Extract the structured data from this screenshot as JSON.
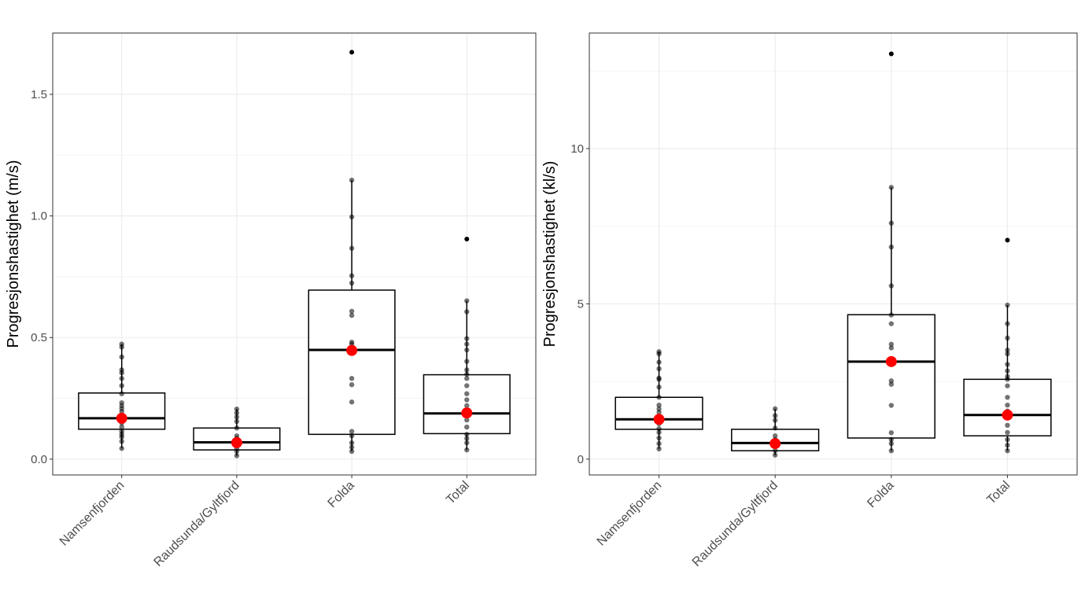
{
  "chart_data": [
    {
      "type": "boxplot",
      "ylabel": "Progresjonshastighet (m/s)",
      "xlabel": "",
      "categories": [
        "Namsenfjorden",
        "Raudsunda/Gyltfjord",
        "Folda",
        "Total"
      ],
      "yticks": [
        0.0,
        0.5,
        1.0,
        1.5
      ],
      "ytick_labels": [
        "0.0",
        "0.5",
        "1.0",
        "1.5"
      ],
      "ylim": [
        -0.065,
        1.752
      ],
      "grid": true,
      "boxes": [
        {
          "q1": 0.123,
          "median": 0.168,
          "q3": 0.272,
          "whisker_low": 0.044,
          "whisker_high": 0.473,
          "mean": 0.168,
          "outliers": []
        },
        {
          "q1": 0.038,
          "median": 0.069,
          "q3": 0.128,
          "whisker_low": 0.014,
          "whisker_high": 0.206,
          "mean": 0.068,
          "outliers": []
        },
        {
          "q1": 0.102,
          "median": 0.449,
          "q3": 0.695,
          "whisker_low": 0.032,
          "whisker_high": 1.147,
          "mean": 0.447,
          "outliers": [
            1.673
          ]
        },
        {
          "q1": 0.105,
          "median": 0.188,
          "q3": 0.347,
          "whisker_low": 0.038,
          "whisker_high": 0.651,
          "mean": 0.19,
          "outliers": [
            0.905
          ]
        }
      ],
      "points": [
        [
          0.473,
          0.461,
          0.42,
          0.367,
          0.355,
          0.332,
          0.302,
          0.269,
          0.232,
          0.22,
          0.208,
          0.196,
          0.179,
          0.149,
          0.132,
          0.114,
          0.102,
          0.091,
          0.073,
          0.044
        ],
        [
          0.206,
          0.19,
          0.173,
          0.155,
          0.128,
          0.096,
          0.085,
          0.061,
          0.044,
          0.032,
          0.014
        ],
        [
          1.147,
          0.996,
          0.867,
          0.754,
          0.724,
          0.608,
          0.591,
          0.481,
          0.473,
          0.332,
          0.306,
          0.235,
          0.114,
          0.096,
          0.067,
          0.049,
          0.032
        ],
        [
          0.651,
          0.606,
          0.496,
          0.473,
          0.449,
          0.402,
          0.367,
          0.349,
          0.332,
          0.302,
          0.269,
          0.244,
          0.22,
          0.191,
          0.161,
          0.132,
          0.102,
          0.085,
          0.067,
          0.038
        ]
      ],
      "mean_color": "#ff0000"
    },
    {
      "type": "boxplot",
      "ylabel": "Progresjonshastighet (kl/s)",
      "xlabel": "",
      "categories": [
        "Namsenfjorden",
        "Raudsunda/Gyltfjord",
        "Folda",
        "Total"
      ],
      "yticks": [
        0,
        5,
        10
      ],
      "ytick_labels": [
        "0",
        "5",
        "10"
      ],
      "ylim": [
        -0.51,
        13.72
      ],
      "grid": true,
      "boxes": [
        {
          "q1": 0.96,
          "median": 1.28,
          "q3": 1.99,
          "whisker_low": 0.33,
          "whisker_high": 3.46,
          "mean": 1.28,
          "outliers": []
        },
        {
          "q1": 0.27,
          "median": 0.52,
          "q3": 0.96,
          "whisker_low": 0.13,
          "whisker_high": 1.62,
          "mean": 0.5,
          "outliers": []
        },
        {
          "q1": 0.68,
          "median": 3.14,
          "q3": 4.65,
          "whisker_low": 0.27,
          "whisker_high": 8.75,
          "mean": 3.14,
          "outliers": [
            13.05
          ]
        },
        {
          "q1": 0.75,
          "median": 1.42,
          "q3": 2.57,
          "whisker_low": 0.27,
          "whisker_high": 4.96,
          "mean": 1.42,
          "outliers": [
            7.05
          ]
        }
      ],
      "points": [
        [
          3.46,
          3.39,
          3.12,
          2.91,
          2.61,
          2.57,
          2.32,
          1.99,
          1.74,
          1.62,
          1.51,
          1.37,
          1.14,
          0.98,
          0.86,
          0.68,
          0.5,
          0.33
        ],
        [
          1.62,
          1.4,
          1.25,
          1.0,
          0.75,
          0.63,
          0.42,
          0.27,
          0.13
        ],
        [
          8.75,
          7.6,
          6.83,
          5.58,
          4.64,
          4.36,
          3.7,
          3.58,
          2.52,
          2.41,
          1.73,
          0.85,
          0.63,
          0.5,
          0.27
        ],
        [
          4.96,
          4.36,
          3.9,
          3.51,
          3.39,
          3.05,
          2.84,
          2.66,
          2.57,
          2.36,
          1.99,
          1.74,
          1.55,
          1.32,
          1.09,
          0.86,
          0.63,
          0.45,
          0.27
        ]
      ],
      "mean_color": "#ff0000"
    }
  ]
}
